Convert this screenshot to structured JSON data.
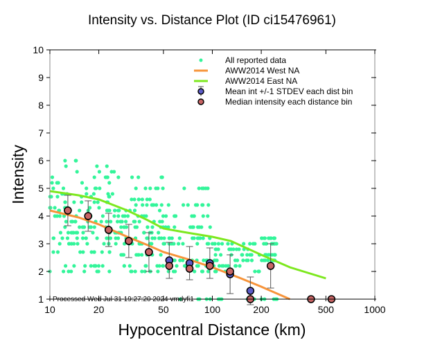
{
  "chart_data": {
    "type": "scatter",
    "title": "Intensity vs. Distance Plot (ID ci15476961)",
    "xlabel": "Hypocentral Distance (km)",
    "ylabel": "Intensity",
    "xscale": "log",
    "xlim": [
      10,
      1000
    ],
    "ylim": [
      1,
      10
    ],
    "xticks": [
      10,
      20,
      50,
      100,
      200,
      500,
      1000
    ],
    "xtick_labels": [
      "10",
      "20",
      "50",
      "100",
      "200",
      "500",
      "1000"
    ],
    "yticks": [
      1,
      2,
      3,
      4,
      5,
      6,
      7,
      8,
      9,
      10
    ],
    "ytick_labels": [
      "1",
      "2",
      "3",
      "4",
      "5",
      "6",
      "7",
      "8",
      "9",
      "10"
    ],
    "grid": false,
    "legend_position": "top-right",
    "annotation": "Processed Wed Jul 31 19:27:20 2024 vmdyfi1",
    "colors": {
      "all_data": "#33f59a",
      "west": "#f7943a",
      "east": "#7de81e",
      "mean": "#5c5cc8",
      "median": "#c86464"
    },
    "legend": [
      {
        "key": "all",
        "label": "All reported data"
      },
      {
        "key": "west",
        "label": "AWW2014 West NA"
      },
      {
        "key": "east",
        "label": "AWW2014 East NA"
      },
      {
        "key": "mean",
        "label": "Mean int +/-1 STDEV each dist bin"
      },
      {
        "key": "median",
        "label": "Median intensity each distance bin"
      }
    ],
    "series": [
      {
        "name": "AWW2014 West NA",
        "type": "line",
        "x": [
          10,
          15,
          20,
          30,
          40,
          50,
          70,
          100,
          150,
          200,
          300
        ],
        "y": [
          4.2,
          3.95,
          3.7,
          3.25,
          2.95,
          2.7,
          2.45,
          2.15,
          1.75,
          1.45,
          1.0
        ]
      },
      {
        "name": "AWW2014 East NA",
        "type": "line",
        "x": [
          10,
          15,
          20,
          30,
          40,
          50,
          70,
          100,
          130,
          200,
          300,
          500
        ],
        "y": [
          4.9,
          4.75,
          4.6,
          4.2,
          3.85,
          3.55,
          3.4,
          3.25,
          3.1,
          2.6,
          2.15,
          1.75
        ]
      },
      {
        "name": "Mean int +/-1 STDEV each dist bin",
        "type": "errorbar",
        "x": [
          12.9,
          17.2,
          23.0,
          30.6,
          40.7,
          54.3,
          72.4,
          96.5,
          128.6,
          171.4
        ],
        "y": [
          4.2,
          4.0,
          3.5,
          3.1,
          2.7,
          2.4,
          2.3,
          2.3,
          1.9,
          1.3
        ],
        "std": [
          0.55,
          0.55,
          0.6,
          0.6,
          0.7,
          0.65,
          0.6,
          0.55,
          0.7,
          0.5
        ]
      },
      {
        "name": "Median intensity each distance bin",
        "type": "scatter",
        "x": [
          12.9,
          17.2,
          23.0,
          30.6,
          40.7,
          54.3,
          72.4,
          96.5,
          128.6,
          171.4,
          228.5,
          405,
          541
        ],
        "y": [
          4.2,
          4.0,
          3.5,
          3.1,
          2.7,
          2.2,
          2.1,
          2.2,
          2.0,
          1.0,
          2.2,
          1.0,
          1.0
        ]
      },
      {
        "name": "All reported data",
        "type": "scatter",
        "extra_error_bar": {
          "x": 228.5,
          "y": 2.2,
          "low": 1.4,
          "high": 3.0
        },
        "clusters": [
          {
            "x_range": [
              10,
              25
            ],
            "y_values": [
              2.0,
              2.2,
              2.7,
              3.0,
              3.2,
              3.4,
              3.6,
              3.8,
              4.0,
              4.2,
              4.3,
              4.5,
              4.7,
              4.8,
              5.0,
              5.2,
              5.4,
              5.6,
              5.8,
              6.0
            ]
          },
          {
            "x_range": [
              25,
              50
            ],
            "y_values": [
              2.0,
              2.2,
              2.6,
              3.0,
              3.2,
              3.4,
              3.6,
              3.8,
              4.0,
              4.2,
              4.4,
              4.6,
              5.0,
              5.4
            ]
          },
          {
            "x_range": [
              50,
              100
            ],
            "y_values": [
              1.0,
              2.0,
              2.2,
              2.4,
              3.0,
              3.2,
              3.6,
              4.0,
              4.4,
              5.0
            ]
          },
          {
            "x_range": [
              100,
              200
            ],
            "y_values": [
              1.0,
              2.0,
              2.2,
              2.4,
              2.6,
              2.8,
              3.0
            ]
          },
          {
            "x_range": [
              200,
              250
            ],
            "y_values": [
              1.0,
              2.4,
              2.6,
              3.0,
              3.2
            ]
          }
        ]
      }
    ]
  }
}
